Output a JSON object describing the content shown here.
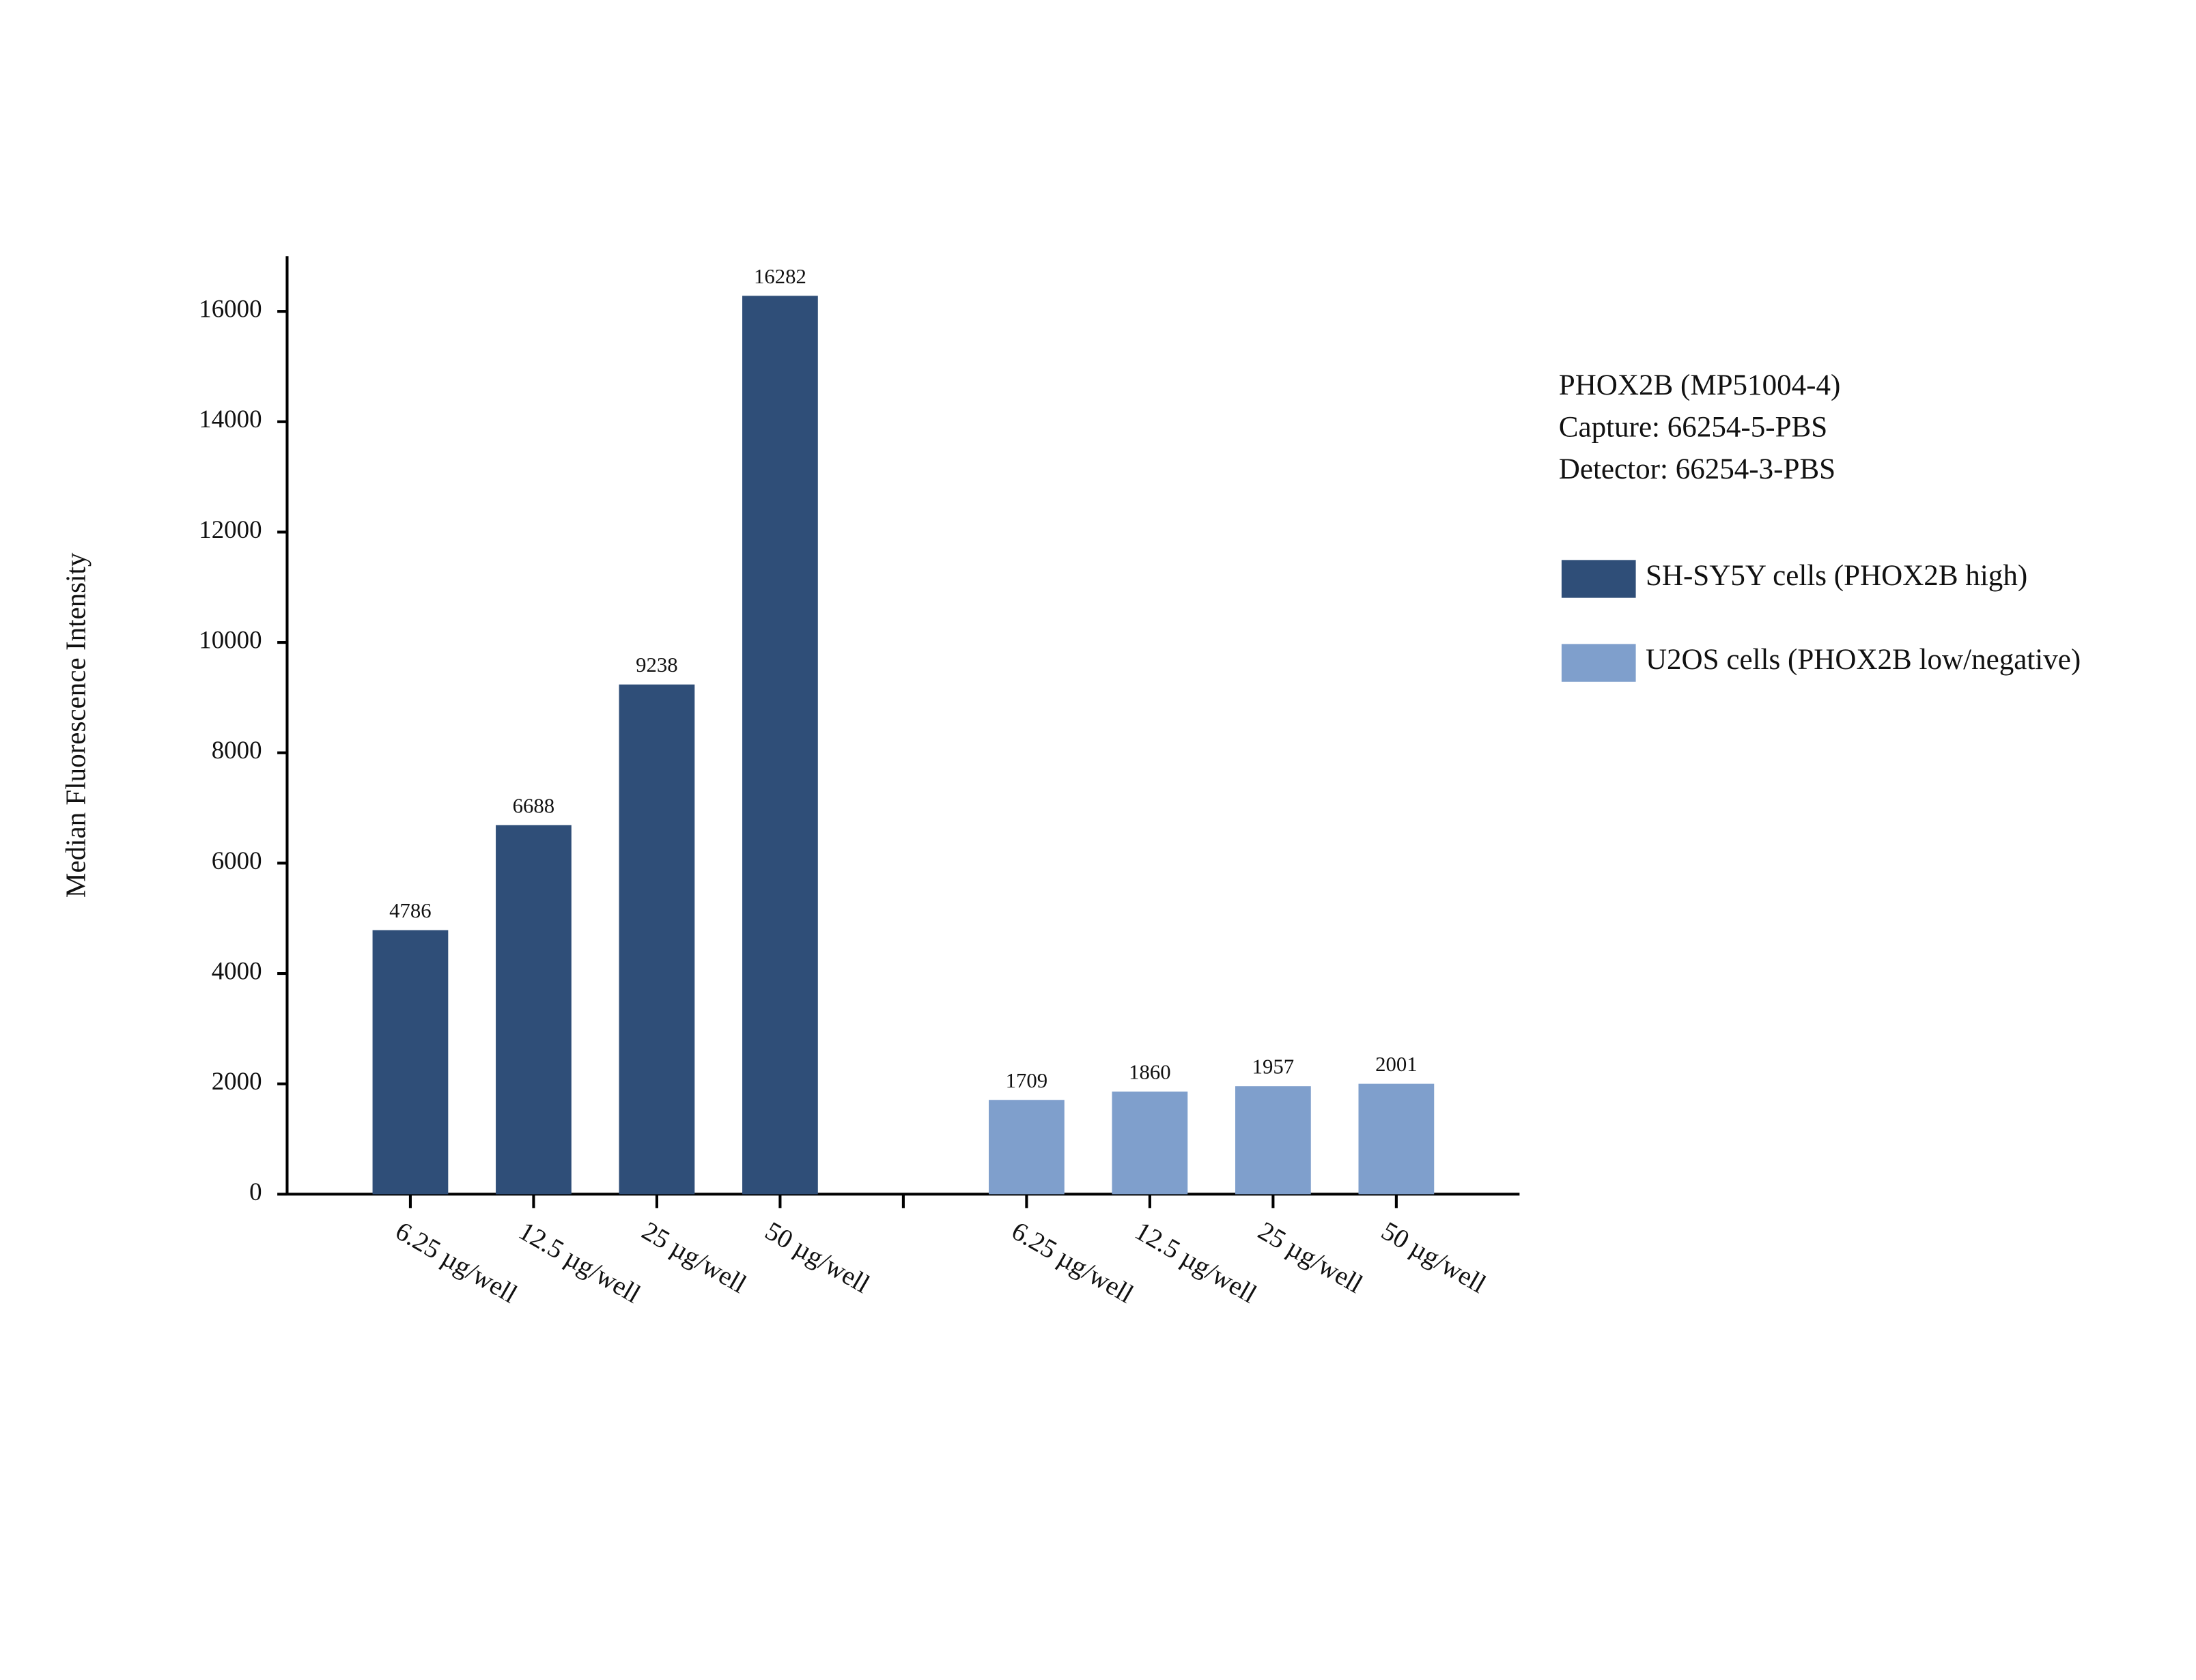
{
  "chart_data": {
    "type": "bar",
    "annotations": [
      "PHOX2B (MP51004-4)",
      "Capture: 66254-5-PBS",
      "Detector: 66254-3-PBS"
    ],
    "y_label": "Median Fluorescence Intensity",
    "categories": [
      "6.25 µg/well",
      "12.5 µg/well",
      "25 µg/well",
      "50 µg/well",
      null,
      "6.25 µg/well",
      "12.5 µg/well",
      "25 µg/well",
      "50 µg/well"
    ],
    "series": [
      {
        "name": "SH-SY5Y cells (PHOX2B high)",
        "color": "#2f4e78",
        "values": [
          4786,
          6688,
          9238,
          16282,
          null,
          null,
          null,
          null,
          null
        ]
      },
      {
        "name": "U2OS cells (PHOX2B low/negative)",
        "color": "#7f9fcc",
        "values": [
          null,
          null,
          null,
          null,
          null,
          1709,
          1860,
          1957,
          2001
        ]
      }
    ],
    "ylim": [
      0,
      17000
    ],
    "yticks": [
      0,
      2000,
      4000,
      6000,
      8000,
      10000,
      12000,
      14000,
      16000
    ]
  }
}
